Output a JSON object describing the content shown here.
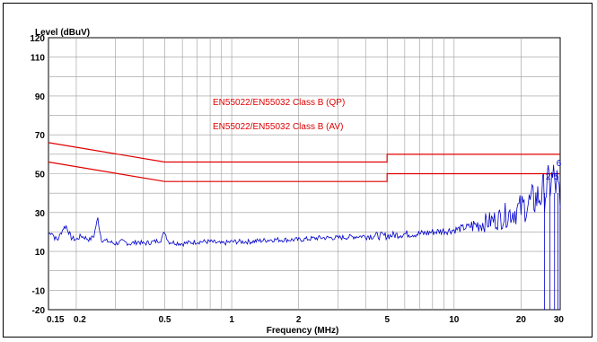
{
  "chart_data": {
    "type": "line",
    "title": "",
    "ylabel": "Level (dBuV)",
    "xlabel": "Frequency (MHz)",
    "x_scale": "log",
    "xlim": [
      0.15,
      30
    ],
    "ylim": [
      -20,
      120
    ],
    "grid": true,
    "y_ticks": [
      {
        "value": 120,
        "label": "120"
      },
      {
        "value": 110,
        "label": "110"
      },
      {
        "value": 90,
        "label": "90"
      },
      {
        "value": 70,
        "label": "70"
      },
      {
        "value": 50,
        "label": "50"
      },
      {
        "value": 30,
        "label": "30"
      },
      {
        "value": 10,
        "label": "10"
      },
      {
        "value": -10,
        "label": "-10"
      },
      {
        "value": -20,
        "label": "-20"
      }
    ],
    "x_ticks": [
      {
        "value": 0.15,
        "label": "0.15"
      },
      {
        "value": 0.2,
        "label": "0.2"
      },
      {
        "value": 0.5,
        "label": "0.5"
      },
      {
        "value": 1,
        "label": "1"
      },
      {
        "value": 2,
        "label": "2"
      },
      {
        "value": 5,
        "label": "5"
      },
      {
        "value": 10,
        "label": "10"
      },
      {
        "value": 20,
        "label": "20"
      },
      {
        "value": 30,
        "label": "30"
      }
    ],
    "limit_lines": [
      {
        "label": "EN55022/EN55032 Class B (QP)",
        "color": "#e00000",
        "points": [
          [
            0.15,
            66
          ],
          [
            0.5,
            56
          ],
          [
            5,
            56
          ],
          [
            5,
            60
          ],
          [
            30,
            60
          ]
        ]
      },
      {
        "label": "EN55022/EN55032 Class B (AV)",
        "color": "#e00000",
        "points": [
          [
            0.15,
            56
          ],
          [
            0.5,
            46
          ],
          [
            5,
            46
          ],
          [
            5,
            50
          ],
          [
            30,
            50
          ]
        ]
      }
    ],
    "series": [
      {
        "color": "#0000cc",
        "points": [
          [
            0.15,
            19
          ],
          [
            0.155,
            20
          ],
          [
            0.16,
            17
          ],
          [
            0.165,
            16
          ],
          [
            0.17,
            19
          ],
          [
            0.175,
            22
          ],
          [
            0.18,
            23
          ],
          [
            0.185,
            20
          ],
          [
            0.19,
            17
          ],
          [
            0.2,
            16
          ],
          [
            0.21,
            18
          ],
          [
            0.22,
            17
          ],
          [
            0.23,
            16
          ],
          [
            0.24,
            18
          ],
          [
            0.245,
            23
          ],
          [
            0.25,
            27
          ],
          [
            0.255,
            21
          ],
          [
            0.26,
            16
          ],
          [
            0.28,
            15
          ],
          [
            0.3,
            14
          ],
          [
            0.32,
            15
          ],
          [
            0.35,
            14
          ],
          [
            0.38,
            15
          ],
          [
            0.4,
            14
          ],
          [
            0.45,
            15
          ],
          [
            0.48,
            16
          ],
          [
            0.5,
            20
          ],
          [
            0.52,
            15
          ],
          [
            0.6,
            14
          ],
          [
            0.7,
            15
          ],
          [
            0.8,
            15
          ],
          [
            0.9,
            14
          ],
          [
            1,
            15
          ],
          [
            1.2,
            15
          ],
          [
            1.5,
            16
          ],
          [
            2,
            16
          ],
          [
            2.5,
            17
          ],
          [
            3,
            17
          ],
          [
            4,
            18
          ],
          [
            5,
            18
          ],
          [
            6,
            19
          ],
          [
            7,
            19
          ],
          [
            8,
            20
          ],
          [
            10,
            21
          ],
          [
            12,
            23
          ],
          [
            14,
            25
          ],
          [
            16,
            27
          ],
          [
            18,
            30
          ],
          [
            20,
            32
          ],
          [
            22,
            35
          ],
          [
            24,
            38
          ],
          [
            25,
            40
          ],
          [
            26,
            42
          ],
          [
            27,
            45
          ],
          [
            28,
            47
          ],
          [
            29,
            44
          ],
          [
            30,
            32
          ]
        ]
      }
    ],
    "markers": [
      {
        "label": "6",
        "x": 29.6,
        "y": 54
      },
      {
        "label": "2",
        "x": 26.5,
        "y": 47
      },
      {
        "label": "5",
        "x": 28.8,
        "y": 47
      }
    ]
  }
}
